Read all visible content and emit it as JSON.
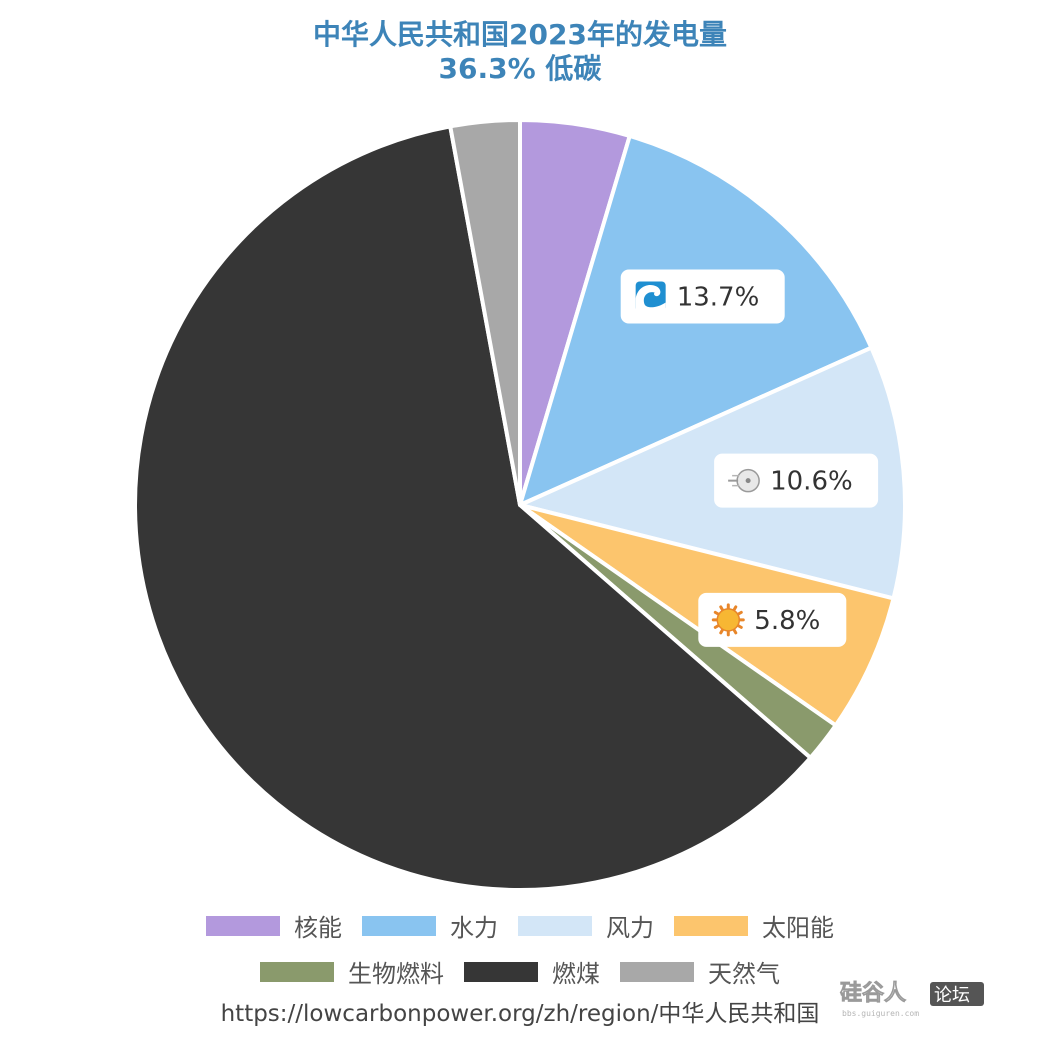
{
  "chart_data": {
    "type": "pie",
    "title": "中华人民共和国2023年的发电量",
    "subtitle": "36.3% 低碳",
    "slices": [
      {
        "label": "核能",
        "value": 4.6,
        "color": "#b399dd",
        "data_label": "",
        "icon": ""
      },
      {
        "label": "水力",
        "value": 13.7,
        "color": "#89c4f0",
        "data_label": "13.7%",
        "icon": "water-wave-icon"
      },
      {
        "label": "风力",
        "value": 10.6,
        "color": "#d3e6f7",
        "data_label": "10.6%",
        "icon": "wind-icon"
      },
      {
        "label": "太阳能",
        "value": 5.8,
        "color": "#fcc56d",
        "data_label": "5.8%",
        "icon": "sun-icon"
      },
      {
        "label": "生物燃料",
        "value": 1.7,
        "color": "#8a9a6c",
        "data_label": "",
        "icon": ""
      },
      {
        "label": "燃煤",
        "value": 60.7,
        "color": "#363636",
        "data_label": "",
        "icon": ""
      },
      {
        "label": "天然气",
        "value": 2.9,
        "color": "#a8a8a8",
        "data_label": "",
        "icon": ""
      }
    ],
    "legend_placement": "bottom"
  },
  "source_url": "https://lowcarbonpower.org/zh/region/中华人民共和国",
  "watermark": {
    "text": "硅谷人 论坛"
  }
}
